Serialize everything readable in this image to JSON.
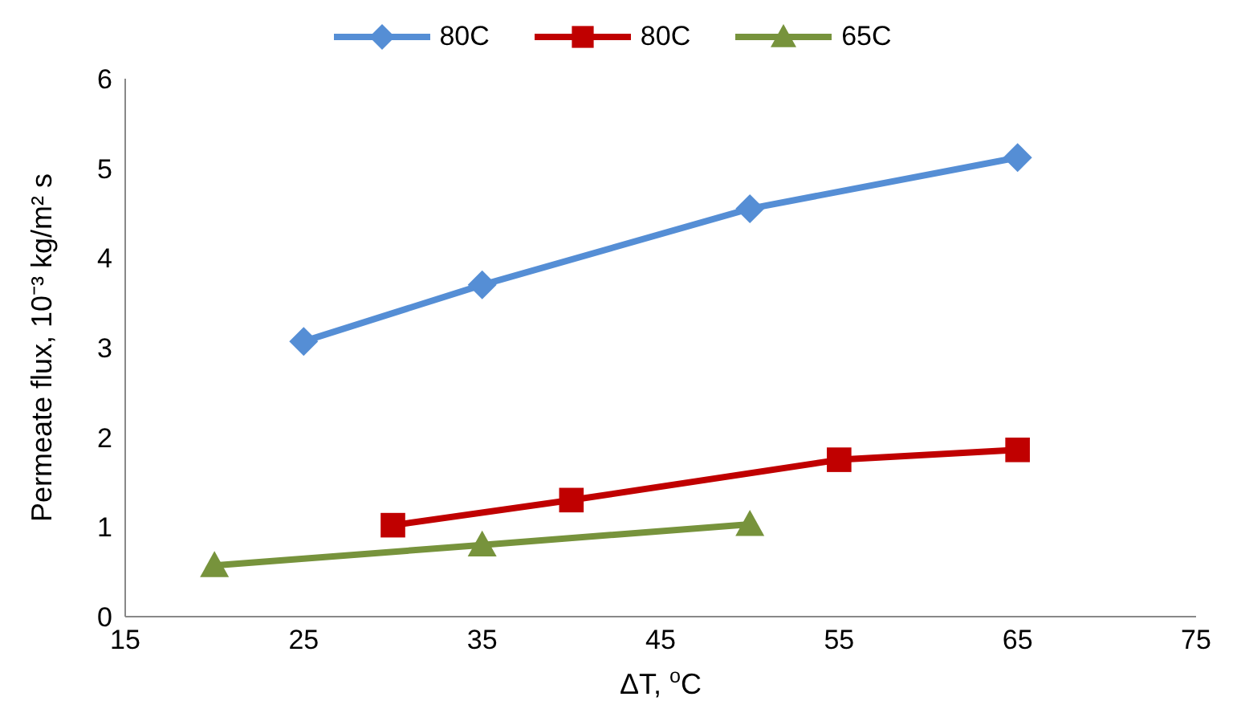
{
  "chart_data": {
    "type": "line",
    "xlabel": "ΔT, $^{o}$C",
    "ylabel": "Permeate flux, 10⁻³ kg/m² s",
    "xlim": [
      15,
      75
    ],
    "xticks": [
      15,
      25,
      35,
      45,
      55,
      65,
      75
    ],
    "ylim": [
      0,
      6
    ],
    "yticks": [
      0,
      1,
      2,
      3,
      4,
      5,
      6
    ],
    "grid": false,
    "legend": "top",
    "line_style": "solid",
    "series": [
      {
        "name": "80C",
        "color": "#558ed5",
        "marker": "diamond",
        "x": [
          25,
          35,
          50,
          65
        ],
        "values": [
          3.07,
          3.7,
          4.55,
          5.12
        ]
      },
      {
        "name": "80C",
        "color": "#c00000",
        "marker": "square",
        "x": [
          30,
          40,
          55,
          65
        ],
        "values": [
          1.02,
          1.3,
          1.75,
          1.86
        ]
      },
      {
        "name": "65C",
        "color": "#77933c",
        "marker": "triangle",
        "x": [
          20,
          35,
          50
        ],
        "values": [
          0.57,
          0.8,
          1.03
        ]
      }
    ]
  }
}
